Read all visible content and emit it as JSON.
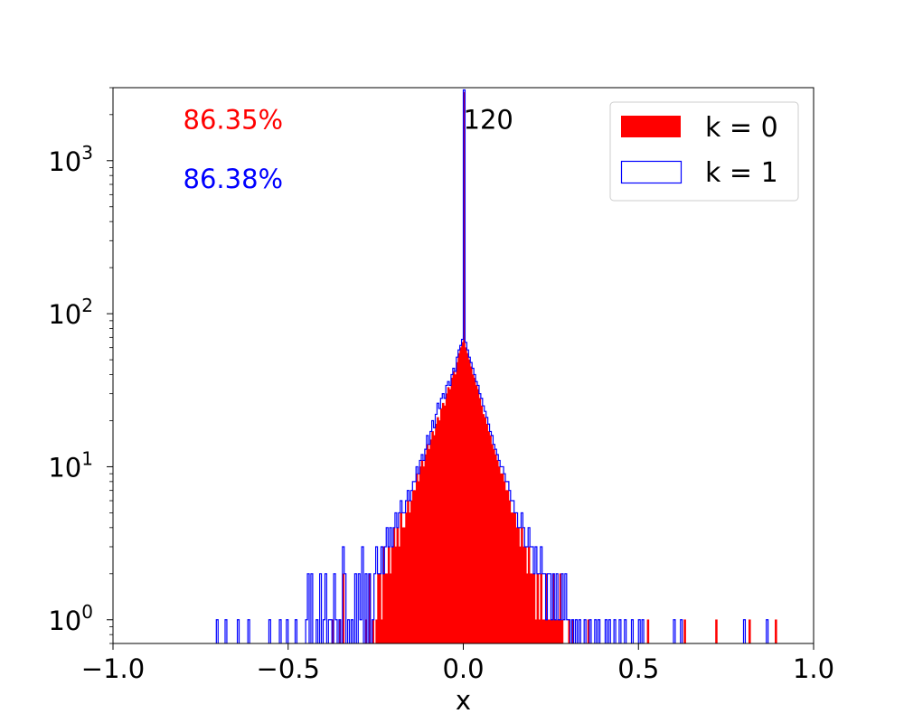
{
  "chart_data": {
    "type": "histogram",
    "xlabel": "x",
    "ylabel": "",
    "title": "",
    "xlim": [
      -1.0,
      1.0
    ],
    "ylim": [
      0.7,
      3000
    ],
    "yscale": "log",
    "grid": false,
    "legend_position": "top-right",
    "x_ticks": [
      -1.0,
      -0.5,
      0.0,
      0.5,
      1.0
    ],
    "x_tick_labels": [
      "−1.0",
      "−0.5",
      "0.0",
      "0.5",
      "1.0"
    ],
    "y_ticks": [
      1,
      10,
      100,
      1000
    ],
    "y_tick_labels": [
      {
        "base": "10",
        "exp": "0"
      },
      {
        "base": "10",
        "exp": "1"
      },
      {
        "base": "10",
        "exp": "2"
      },
      {
        "base": "10",
        "exp": "3"
      }
    ],
    "bin_width": 0.005,
    "series": [
      {
        "name": "k = 0",
        "style": "filled",
        "color": "#ff0000",
        "bins": [
          [
            -0.375,
            1
          ],
          [
            -0.355,
            1
          ],
          [
            -0.345,
            2
          ],
          [
            -0.28,
            1
          ],
          [
            -0.27,
            2
          ],
          [
            -0.26,
            1
          ],
          [
            -0.25,
            1
          ],
          [
            -0.245,
            2
          ],
          [
            -0.24,
            2
          ],
          [
            -0.235,
            1
          ],
          [
            -0.23,
            3
          ],
          [
            -0.225,
            2
          ],
          [
            -0.22,
            2
          ],
          [
            -0.215,
            3
          ],
          [
            -0.21,
            2
          ],
          [
            -0.205,
            3
          ],
          [
            -0.2,
            4
          ],
          [
            -0.195,
            3
          ],
          [
            -0.19,
            4
          ],
          [
            -0.185,
            3
          ],
          [
            -0.18,
            5
          ],
          [
            -0.175,
            4
          ],
          [
            -0.17,
            4
          ],
          [
            -0.165,
            5
          ],
          [
            -0.16,
            6
          ],
          [
            -0.155,
            5
          ],
          [
            -0.15,
            6
          ],
          [
            -0.145,
            7
          ],
          [
            -0.14,
            7
          ],
          [
            -0.135,
            9
          ],
          [
            -0.13,
            8
          ],
          [
            -0.125,
            10
          ],
          [
            -0.12,
            11
          ],
          [
            -0.115,
            10
          ],
          [
            -0.11,
            12
          ],
          [
            -0.105,
            14
          ],
          [
            -0.1,
            13
          ],
          [
            -0.095,
            15
          ],
          [
            -0.09,
            17
          ],
          [
            -0.085,
            16
          ],
          [
            -0.08,
            19
          ],
          [
            -0.075,
            21
          ],
          [
            -0.07,
            20
          ],
          [
            -0.065,
            24
          ],
          [
            -0.06,
            26
          ],
          [
            -0.055,
            25
          ],
          [
            -0.05,
            30
          ],
          [
            -0.045,
            33
          ],
          [
            -0.04,
            32
          ],
          [
            -0.035,
            38
          ],
          [
            -0.03,
            42
          ],
          [
            -0.025,
            40
          ],
          [
            -0.02,
            48
          ],
          [
            -0.015,
            55
          ],
          [
            -0.01,
            60
          ],
          [
            -0.005,
            65
          ],
          [
            0.0,
            2800
          ],
          [
            0.005,
            60
          ],
          [
            0.01,
            55
          ],
          [
            0.015,
            50
          ],
          [
            0.02,
            45
          ],
          [
            0.025,
            40
          ],
          [
            0.03,
            38
          ],
          [
            0.035,
            34
          ],
          [
            0.04,
            32
          ],
          [
            0.045,
            28
          ],
          [
            0.05,
            25
          ],
          [
            0.055,
            22
          ],
          [
            0.06,
            21
          ],
          [
            0.065,
            19
          ],
          [
            0.07,
            17
          ],
          [
            0.075,
            16
          ],
          [
            0.08,
            14
          ],
          [
            0.085,
            13
          ],
          [
            0.09,
            12
          ],
          [
            0.095,
            11
          ],
          [
            0.1,
            10
          ],
          [
            0.105,
            9
          ],
          [
            0.11,
            9
          ],
          [
            0.115,
            8
          ],
          [
            0.12,
            7
          ],
          [
            0.125,
            7
          ],
          [
            0.13,
            6
          ],
          [
            0.135,
            5
          ],
          [
            0.14,
            5
          ],
          [
            0.145,
            5
          ],
          [
            0.15,
            4
          ],
          [
            0.155,
            4
          ],
          [
            0.16,
            3
          ],
          [
            0.165,
            4
          ],
          [
            0.17,
            3
          ],
          [
            0.175,
            3
          ],
          [
            0.18,
            2
          ],
          [
            0.185,
            3
          ],
          [
            0.19,
            2
          ],
          [
            0.195,
            2
          ],
          [
            0.2,
            2
          ],
          [
            0.205,
            1
          ],
          [
            0.21,
            2
          ],
          [
            0.215,
            1
          ],
          [
            0.22,
            2
          ],
          [
            0.225,
            1
          ],
          [
            0.23,
            1
          ],
          [
            0.235,
            2
          ],
          [
            0.24,
            1
          ],
          [
            0.245,
            1
          ],
          [
            0.25,
            1
          ],
          [
            0.255,
            2
          ],
          [
            0.26,
            1
          ],
          [
            0.265,
            1
          ],
          [
            0.27,
            1
          ],
          [
            0.275,
            2
          ],
          [
            0.28,
            1
          ],
          [
            0.3,
            1
          ],
          [
            0.31,
            1
          ],
          [
            0.355,
            1
          ],
          [
            0.525,
            1
          ],
          [
            0.63,
            1
          ],
          [
            0.72,
            1
          ],
          [
            0.815,
            1
          ],
          [
            0.89,
            1
          ]
        ]
      },
      {
        "name": "k = 1",
        "style": "step",
        "color": "#0000ff",
        "bins": [
          [
            -0.705,
            1
          ],
          [
            -0.68,
            1
          ],
          [
            -0.645,
            1
          ],
          [
            -0.615,
            1
          ],
          [
            -0.555,
            1
          ],
          [
            -0.525,
            1
          ],
          [
            -0.505,
            1
          ],
          [
            -0.48,
            1
          ],
          [
            -0.45,
            1
          ],
          [
            -0.445,
            2
          ],
          [
            -0.435,
            2
          ],
          [
            -0.42,
            1
          ],
          [
            -0.41,
            2
          ],
          [
            -0.4,
            1
          ],
          [
            -0.395,
            2
          ],
          [
            -0.385,
            1
          ],
          [
            -0.38,
            1
          ],
          [
            -0.37,
            2
          ],
          [
            -0.365,
            1
          ],
          [
            -0.355,
            1
          ],
          [
            -0.345,
            3
          ],
          [
            -0.34,
            2
          ],
          [
            -0.33,
            1
          ],
          [
            -0.32,
            1
          ],
          [
            -0.31,
            2
          ],
          [
            -0.3,
            2
          ],
          [
            -0.295,
            1
          ],
          [
            -0.29,
            3
          ],
          [
            -0.28,
            2
          ],
          [
            -0.27,
            2
          ],
          [
            -0.26,
            1
          ],
          [
            -0.255,
            2
          ],
          [
            -0.25,
            3
          ],
          [
            -0.245,
            2
          ],
          [
            -0.24,
            2
          ],
          [
            -0.235,
            3
          ],
          [
            -0.23,
            2
          ],
          [
            -0.225,
            3
          ],
          [
            -0.22,
            4
          ],
          [
            -0.215,
            3
          ],
          [
            -0.21,
            4
          ],
          [
            -0.205,
            3
          ],
          [
            -0.2,
            4
          ],
          [
            -0.195,
            5
          ],
          [
            -0.19,
            4
          ],
          [
            -0.185,
            5
          ],
          [
            -0.18,
            6
          ],
          [
            -0.175,
            5
          ],
          [
            -0.17,
            5
          ],
          [
            -0.165,
            6
          ],
          [
            -0.16,
            7
          ],
          [
            -0.155,
            6
          ],
          [
            -0.15,
            7
          ],
          [
            -0.145,
            8
          ],
          [
            -0.14,
            8
          ],
          [
            -0.135,
            10
          ],
          [
            -0.13,
            9
          ],
          [
            -0.125,
            11
          ],
          [
            -0.12,
            12
          ],
          [
            -0.115,
            11
          ],
          [
            -0.11,
            13
          ],
          [
            -0.105,
            16
          ],
          [
            -0.1,
            14
          ],
          [
            -0.095,
            17
          ],
          [
            -0.09,
            20
          ],
          [
            -0.085,
            18
          ],
          [
            -0.08,
            22
          ],
          [
            -0.075,
            26
          ],
          [
            -0.07,
            24
          ],
          [
            -0.065,
            28
          ],
          [
            -0.06,
            30
          ],
          [
            -0.055,
            28
          ],
          [
            -0.05,
            34
          ],
          [
            -0.045,
            36
          ],
          [
            -0.04,
            34
          ],
          [
            -0.035,
            40
          ],
          [
            -0.03,
            44
          ],
          [
            -0.025,
            42
          ],
          [
            -0.02,
            52
          ],
          [
            -0.015,
            58
          ],
          [
            -0.01,
            62
          ],
          [
            -0.005,
            68
          ],
          [
            0.0,
            2900
          ],
          [
            0.005,
            65
          ],
          [
            0.01,
            58
          ],
          [
            0.015,
            52
          ],
          [
            0.02,
            48
          ],
          [
            0.025,
            44
          ],
          [
            0.03,
            40
          ],
          [
            0.035,
            36
          ],
          [
            0.04,
            34
          ],
          [
            0.045,
            30
          ],
          [
            0.05,
            28
          ],
          [
            0.055,
            25
          ],
          [
            0.06,
            23
          ],
          [
            0.065,
            21
          ],
          [
            0.07,
            19
          ],
          [
            0.075,
            17
          ],
          [
            0.08,
            16
          ],
          [
            0.085,
            14
          ],
          [
            0.09,
            13
          ],
          [
            0.095,
            12
          ],
          [
            0.1,
            11
          ],
          [
            0.105,
            10
          ],
          [
            0.11,
            10
          ],
          [
            0.115,
            9
          ],
          [
            0.12,
            8
          ],
          [
            0.125,
            8
          ],
          [
            0.13,
            7
          ],
          [
            0.135,
            6
          ],
          [
            0.14,
            6
          ],
          [
            0.145,
            5
          ],
          [
            0.15,
            5
          ],
          [
            0.155,
            4
          ],
          [
            0.16,
            4
          ],
          [
            0.165,
            5
          ],
          [
            0.17,
            4
          ],
          [
            0.175,
            3
          ],
          [
            0.18,
            3
          ],
          [
            0.185,
            4
          ],
          [
            0.19,
            3
          ],
          [
            0.195,
            3
          ],
          [
            0.2,
            2
          ],
          [
            0.205,
            3
          ],
          [
            0.21,
            2
          ],
          [
            0.215,
            2
          ],
          [
            0.22,
            3
          ],
          [
            0.225,
            2
          ],
          [
            0.23,
            2
          ],
          [
            0.235,
            1
          ],
          [
            0.24,
            2
          ],
          [
            0.245,
            2
          ],
          [
            0.25,
            1
          ],
          [
            0.255,
            2
          ],
          [
            0.26,
            1
          ],
          [
            0.265,
            2
          ],
          [
            0.27,
            1
          ],
          [
            0.275,
            1
          ],
          [
            0.28,
            2
          ],
          [
            0.285,
            1
          ],
          [
            0.29,
            2
          ],
          [
            0.295,
            1
          ],
          [
            0.3,
            1
          ],
          [
            0.31,
            1
          ],
          [
            0.32,
            1
          ],
          [
            0.33,
            1
          ],
          [
            0.345,
            1
          ],
          [
            0.36,
            1
          ],
          [
            0.375,
            1
          ],
          [
            0.385,
            1
          ],
          [
            0.405,
            1
          ],
          [
            0.415,
            1
          ],
          [
            0.43,
            1
          ],
          [
            0.445,
            1
          ],
          [
            0.46,
            1
          ],
          [
            0.48,
            1
          ],
          [
            0.5,
            1
          ],
          [
            0.51,
            1
          ],
          [
            0.6,
            1
          ],
          [
            0.62,
            1
          ],
          [
            0.8,
            1
          ],
          [
            0.865,
            1
          ]
        ]
      }
    ],
    "annotations": [
      {
        "text": "86.35%",
        "color": "#ff0000",
        "x": -0.8,
        "y": 1850
      },
      {
        "text": "86.38%",
        "color": "#0000ff",
        "x": -0.8,
        "y": 760
      },
      {
        "text": "120",
        "color": "#000000",
        "x": 0.0,
        "y": 1850
      }
    ]
  }
}
